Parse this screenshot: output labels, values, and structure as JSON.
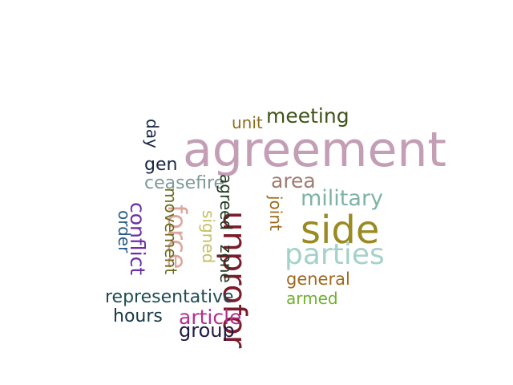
{
  "word_cloud": {
    "words": [
      {
        "text": "agreement",
        "color": "#c39eb4"
      },
      {
        "text": "side",
        "color": "#9a8a22"
      },
      {
        "text": "unprofor",
        "color": "#7a1c2c"
      },
      {
        "text": "parties",
        "color": "#a5d2c8"
      },
      {
        "text": "military",
        "color": "#7fb3a4"
      },
      {
        "text": "meeting",
        "color": "#3f5418"
      },
      {
        "text": "area",
        "color": "#a07b70"
      },
      {
        "text": "force",
        "color": "#dca69d"
      },
      {
        "text": "article",
        "color": "#b62e8c"
      },
      {
        "text": "conflict",
        "color": "#6b2fa6"
      },
      {
        "text": "group",
        "color": "#1e1b3f"
      },
      {
        "text": "representative",
        "color": "#1f4d54"
      },
      {
        "text": "ceasefire",
        "color": "#7f9a98"
      },
      {
        "text": "general",
        "color": "#a0681f"
      },
      {
        "text": "hours",
        "color": "#17394a"
      },
      {
        "text": "gen",
        "color": "#182545"
      },
      {
        "text": "unit",
        "color": "#8e6e1c"
      },
      {
        "text": "day",
        "color": "#182545"
      },
      {
        "text": "order",
        "color": "#2a5b86"
      },
      {
        "text": "movement",
        "color": "#6d6b1c"
      },
      {
        "text": "signed",
        "color": "#c5c066"
      },
      {
        "text": "zone",
        "color": "#1f3a1e"
      },
      {
        "text": "agreed",
        "color": "#1f3a1e"
      },
      {
        "text": "joint",
        "color": "#9a6b1c"
      },
      {
        "text": "armed",
        "color": "#6fb12e"
      }
    ]
  }
}
